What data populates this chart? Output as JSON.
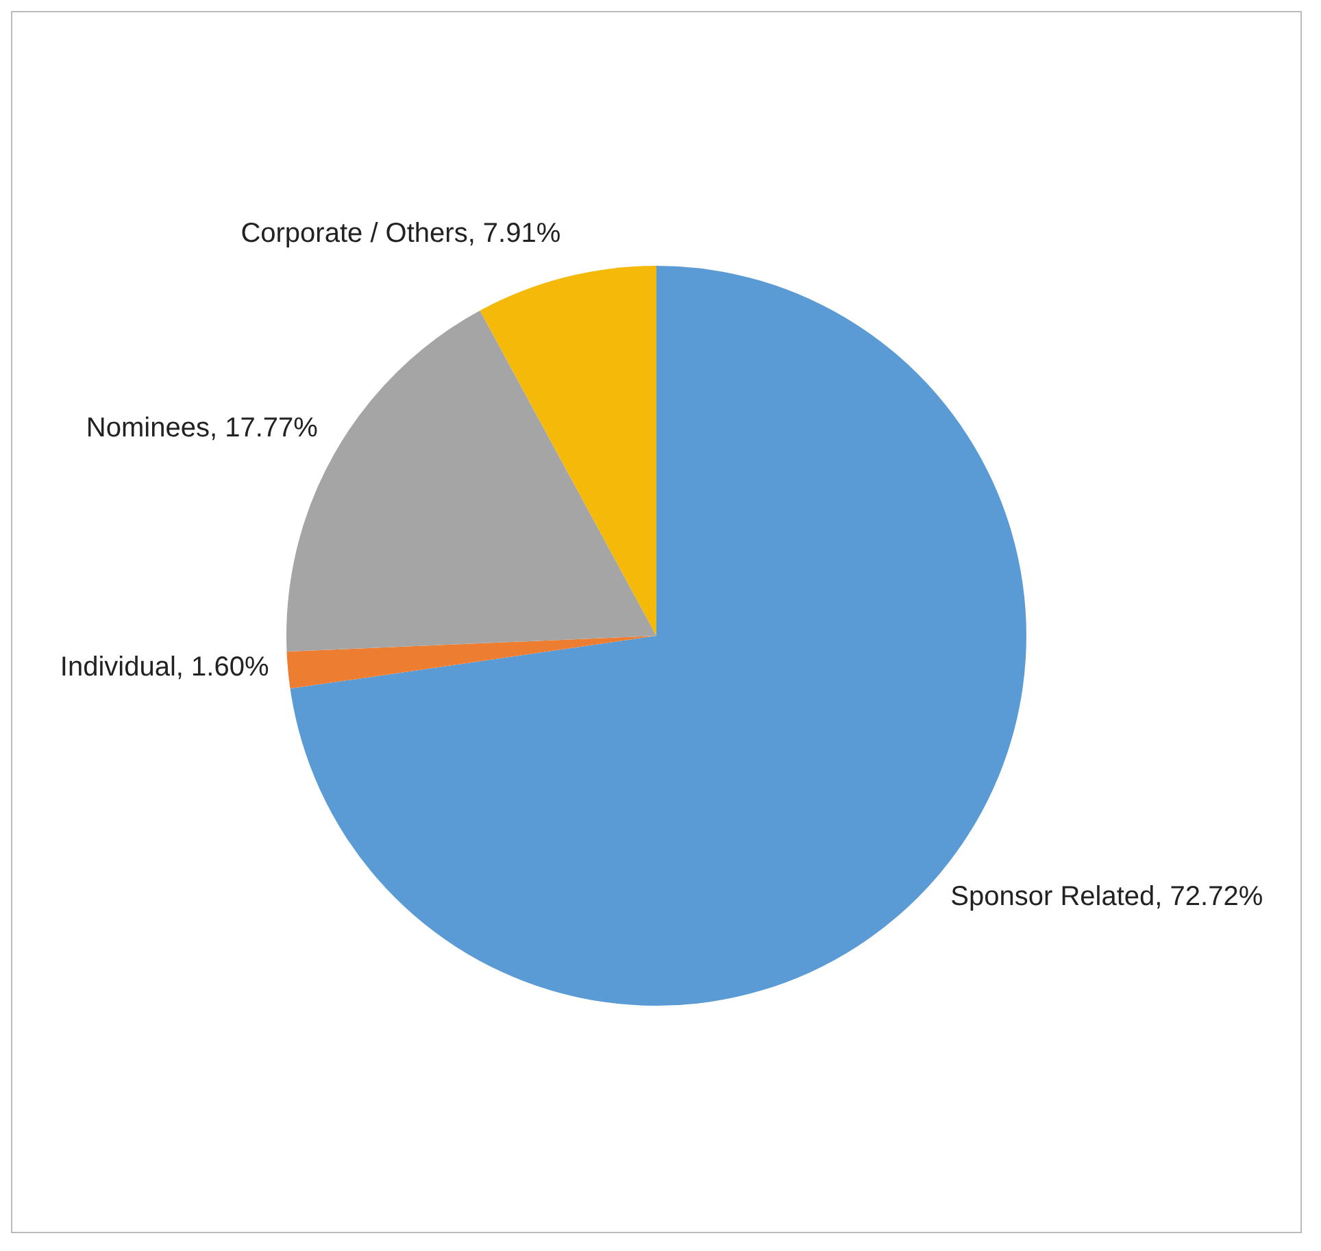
{
  "chart_data": {
    "type": "pie",
    "categories": [
      "Sponsor Related",
      "Individual",
      "Nominees",
      "Corporate / Others"
    ],
    "values": [
      72.72,
      1.6,
      17.77,
      7.91
    ],
    "value_labels": [
      "72.72%",
      "1.60%",
      "17.77%",
      "7.91%"
    ],
    "colors": [
      "#5b9bd5",
      "#ed7d31",
      "#a5a5a5",
      "#f5b90a"
    ],
    "legend": false
  }
}
